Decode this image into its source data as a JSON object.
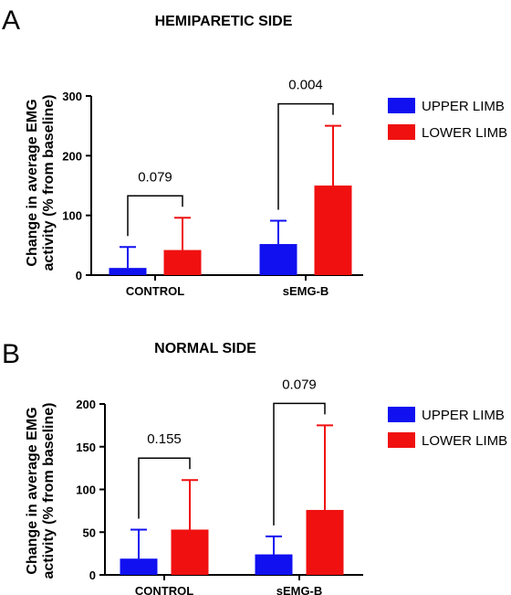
{
  "colors": {
    "upper": "#1010f0",
    "lower": "#f01010"
  },
  "legend": {
    "upper_label": "UPPER LIMB",
    "lower_label": "LOWER LIMB"
  },
  "chart_data": [
    {
      "type": "bar",
      "panel": "A",
      "title": "HEMIPARETIC SIDE",
      "ylabel_line1": "Change in average EMG",
      "ylabel_line2": "activity (% from baseline)",
      "ylim": [
        0,
        300
      ],
      "yticks": [
        0,
        100,
        200,
        300
      ],
      "categories": [
        "CONTROL",
        "sEMG-B"
      ],
      "series": [
        {
          "name": "UPPER LIMB",
          "values": [
            12,
            52
          ],
          "error": [
            35,
            39
          ]
        },
        {
          "name": "LOWER LIMB",
          "values": [
            42,
            150
          ],
          "error": [
            54,
            100
          ]
        }
      ],
      "pvalues": [
        "0.079",
        "0.004"
      ]
    },
    {
      "type": "bar",
      "panel": "B",
      "title": "NORMAL SIDE",
      "ylabel_line1": "Change in average EMG",
      "ylabel_line2": "activity (% from baseline)",
      "ylim": [
        0,
        200
      ],
      "yticks": [
        0,
        50,
        100,
        150,
        200
      ],
      "categories": [
        "CONTROL",
        "sEMG-B"
      ],
      "series": [
        {
          "name": "UPPER LIMB",
          "values": [
            19,
            24
          ],
          "error": [
            34,
            21
          ]
        },
        {
          "name": "LOWER LIMB",
          "values": [
            53,
            76
          ],
          "error": [
            58,
            99
          ]
        }
      ],
      "pvalues": [
        "0.155",
        "0.079"
      ]
    }
  ]
}
